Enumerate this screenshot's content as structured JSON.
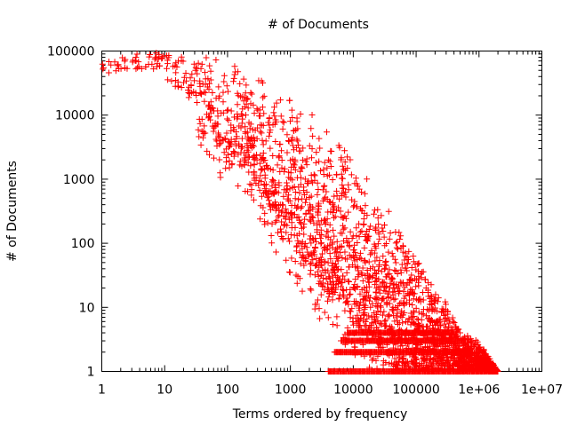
{
  "chart_data": {
    "type": "scatter",
    "title": "# of Documents",
    "xlabel": "Terms ordered by frequency",
    "ylabel": "# of Documents",
    "xscale": "log",
    "yscale": "log",
    "xlim": [
      1,
      10000000
    ],
    "ylim": [
      1,
      100000
    ],
    "x_ticks": [
      1,
      10,
      100,
      1000,
      10000,
      100000,
      1000000,
      10000000
    ],
    "x_tick_labels": [
      "1",
      "10",
      "100",
      "1000",
      "10000",
      "100000",
      "1e+06",
      "1e+07"
    ],
    "y_ticks": [
      1,
      10,
      100,
      1000,
      10000,
      100000
    ],
    "y_tick_labels": [
      "1",
      "10",
      "100",
      "1000",
      "10000",
      "100000"
    ],
    "grid": false,
    "marker": "+",
    "color": "#ff0000",
    "series": [
      {
        "upper_envelope": [
          [
            1,
            75000
          ],
          [
            3,
            90000
          ],
          [
            10,
            95000
          ],
          [
            30,
            90000
          ],
          [
            100,
            75000
          ],
          [
            300,
            40000
          ],
          [
            1000,
            22000
          ],
          [
            3000,
            9000
          ],
          [
            10000,
            2500
          ],
          [
            30000,
            500
          ],
          [
            100000,
            60
          ],
          [
            300000,
            12
          ],
          [
            500000,
            5
          ],
          [
            1000000,
            3
          ],
          [
            2000000,
            1
          ]
        ],
        "lower_envelope": [
          [
            20,
            20000
          ],
          [
            50,
            8000
          ],
          [
            70,
            3000
          ],
          [
            200,
            1500
          ],
          [
            500,
            300
          ],
          [
            1000,
            100
          ],
          [
            2000,
            40
          ],
          [
            3000,
            20
          ],
          [
            5000,
            15
          ],
          [
            10000,
            5
          ],
          [
            20000,
            3
          ],
          [
            30000,
            2
          ],
          [
            50000,
            1
          ]
        ],
        "band_level_y": [
          1,
          2,
          3,
          4
        ],
        "band_level_end_x": [
          2000000,
          800000,
          600000,
          400000
        ]
      }
    ]
  }
}
